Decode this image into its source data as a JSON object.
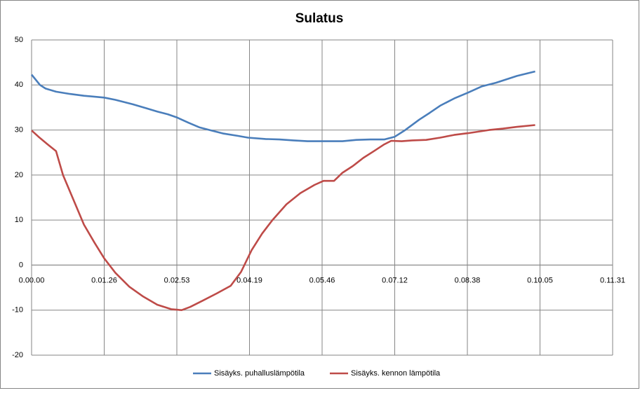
{
  "chart_data": {
    "type": "line",
    "title": "Sulatus",
    "xlim": [
      0,
      691.2
    ],
    "xticks": [
      {
        "value": 0,
        "label": "0.00.00"
      },
      {
        "value": 86.4,
        "label": "0.01.26"
      },
      {
        "value": 172.8,
        "label": "0.02.53"
      },
      {
        "value": 259.2,
        "label": "0.04.19"
      },
      {
        "value": 345.6,
        "label": "0.05.46"
      },
      {
        "value": 432,
        "label": "0.07.12"
      },
      {
        "value": 518.4,
        "label": "0.08.38"
      },
      {
        "value": 604.8,
        "label": "0.10.05"
      },
      {
        "value": 691.2,
        "label": "0.11.31"
      }
    ],
    "ylim": [
      -20,
      50
    ],
    "yticks": [
      -20,
      -10,
      0,
      10,
      20,
      30,
      40,
      50
    ],
    "grid": true,
    "legend": "bottom",
    "series": [
      {
        "name": "Sisäyks. puhalluslämpötila",
        "color": "#4a7ebb",
        "x": [
          0,
          10,
          16.6,
          29.1,
          45.7,
          62.3,
          86.4,
          99.7,
          120.5,
          137.1,
          149.5,
          162,
          172.8,
          186.9,
          199.4,
          211.8,
          228.5,
          245.1,
          257.5,
          278.3,
          294.9,
          311.5,
          328.2,
          344.8,
          369.8,
          386.4,
          402.9,
          419.5,
          432,
          444.5,
          461.1,
          473.6,
          486,
          502.6,
          519.2,
          535.8,
          552.5,
          577.4,
          599
        ],
        "values": [
          42.3,
          40,
          39.2,
          38.5,
          38,
          37.6,
          37.2,
          36.7,
          35.7,
          34.8,
          34.1,
          33.5,
          32.8,
          31.6,
          30.6,
          30,
          29.2,
          28.7,
          28.3,
          28,
          27.9,
          27.7,
          27.5,
          27.5,
          27.5,
          27.8,
          27.9,
          27.9,
          28.5,
          30,
          32.3,
          33.8,
          35.4,
          37,
          38.3,
          39.7,
          40.5,
          42,
          43
        ]
      },
      {
        "name": "Sisäyks. kennon lämpötila",
        "color": "#be4b48",
        "x": [
          0,
          8.3,
          19.1,
          29.1,
          37.4,
          49.8,
          62.3,
          74.8,
          86.4,
          99.7,
          116.3,
          132.9,
          149.5,
          166.2,
          178.6,
          188.6,
          203.5,
          220.2,
          236.8,
          249.2,
          261.7,
          274.2,
          286.6,
          303.2,
          319.8,
          336.5,
          347.3,
          359.8,
          369.8,
          382.2,
          394.6,
          407.1,
          419.5,
          427.8,
          440.3,
          452.8,
          469.4,
          486,
          502.6,
          519.2,
          544.1,
          560.8,
          577.4,
          599
        ],
        "values": [
          29.9,
          28.5,
          26.8,
          25.3,
          20,
          14.5,
          9,
          5,
          1.5,
          -1.7,
          -4.8,
          -7,
          -8.8,
          -9.8,
          -10,
          -9.3,
          -7.9,
          -6.3,
          -4.6,
          -1.5,
          3.3,
          7,
          10,
          13.5,
          16,
          17.8,
          18.7,
          18.7,
          20.5,
          22,
          23.8,
          25.3,
          26.8,
          27.6,
          27.5,
          27.7,
          27.8,
          28.3,
          28.9,
          29.3,
          30,
          30.3,
          30.7,
          31.1
        ]
      }
    ]
  }
}
